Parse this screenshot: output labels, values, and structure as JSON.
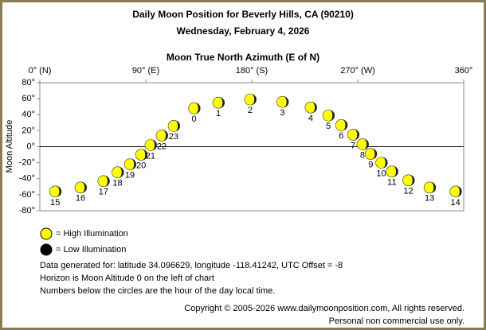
{
  "chart_data": {
    "type": "scatter",
    "title": "Daily Moon Position for Beverly Hills, CA (90210)",
    "subtitle": "Wednesday, February 4, 2026",
    "x_label": "Moon True North Azimuth (E of N)",
    "y_label": "Moon Altitude",
    "xlim": [
      0,
      360
    ],
    "xticks": [
      {
        "value": 0,
        "label": "0° (N)"
      },
      {
        "value": 90,
        "label": "90° (E)"
      },
      {
        "value": 180,
        "label": "180° (S)"
      },
      {
        "value": 270,
        "label": "270° (W)"
      },
      {
        "value": 360,
        "label": "360°"
      }
    ],
    "ylim": [
      -80,
      80
    ],
    "yticks": [
      {
        "value": 80,
        "label": "80°"
      },
      {
        "value": 60,
        "label": "60°"
      },
      {
        "value": 40,
        "label": "40°"
      },
      {
        "value": 20,
        "label": "20°"
      },
      {
        "value": 0,
        "label": "0°"
      },
      {
        "value": -20,
        "label": "-20°"
      },
      {
        "value": -40,
        "label": "-40°"
      },
      {
        "value": -60,
        "label": "-60°"
      },
      {
        "value": -80,
        "label": "-80°"
      }
    ],
    "series": [
      {
        "name": "High Illumination",
        "color": "#ffff00",
        "x": [
          131,
          151.6,
          178.6,
          206,
          230,
          245,
          256,
          266,
          274,
          281,
          290,
          299,
          313,
          331,
          353,
          13,
          34.5,
          54,
          66,
          76.5,
          86,
          94,
          103.5,
          113.7
        ],
        "values": [
          48,
          55,
          59,
          56,
          49,
          39,
          27,
          15,
          3,
          -9,
          -20,
          -31,
          -42,
          -51,
          -56,
          -56,
          -51,
          -43,
          -32,
          -22,
          -10,
          2,
          14,
          26
        ],
        "point_labels": [
          "0",
          "1",
          "2",
          "3",
          "4",
          "5",
          "6",
          "7",
          "8",
          "9",
          "10",
          "11",
          "12",
          "13",
          "14",
          "15",
          "16",
          "17",
          "18",
          "19",
          "20",
          "21",
          "22",
          "23"
        ]
      }
    ],
    "legend": [
      {
        "label": "= High Illumination",
        "color": "#ffff00"
      },
      {
        "label": "= Low Illumination",
        "color": "#000000"
      }
    ],
    "notes": [
      "Data generated for: latitude 34.096629, longitude -118.41242, UTC Offset = -8",
      "Horizon is Moon Altitude 0 on the left of chart",
      "Numbers below the circles are the hour of the day local time."
    ],
    "copyright": [
      "Copyright © 2005-2026 www.dailymoonposition.com, All rights reserved.",
      "Personal non commercial use only."
    ]
  }
}
